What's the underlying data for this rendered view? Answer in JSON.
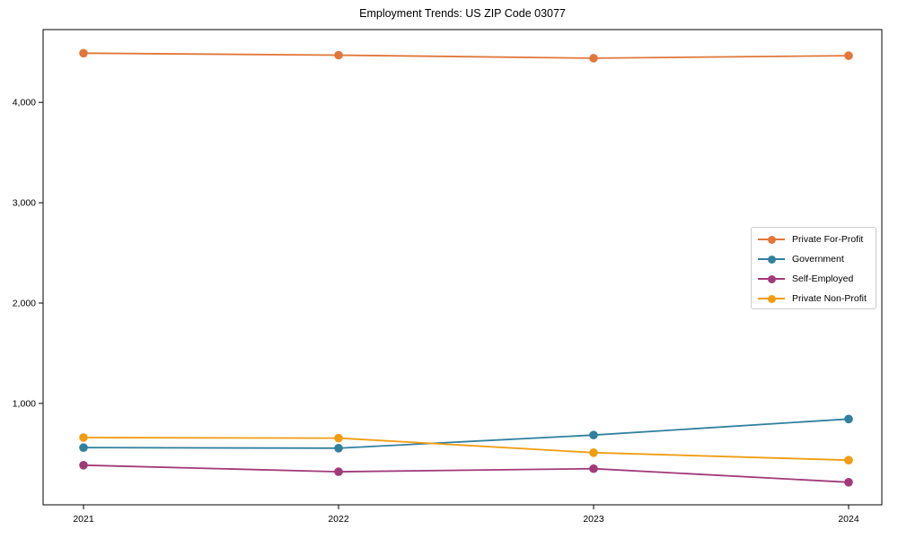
{
  "chart_data": {
    "type": "line",
    "title": "Employment Trends: US ZIP Code 03077",
    "xlabel": "",
    "ylabel": "",
    "x": [
      "2021",
      "2022",
      "2023",
      "2024"
    ],
    "series": [
      {
        "name": "Private For-Profit",
        "color": "#e1773b",
        "values": [
          4490,
          4470,
          4440,
          4465
        ]
      },
      {
        "name": "Government",
        "color": "#31809e",
        "values": [
          560,
          555,
          685,
          845
        ]
      },
      {
        "name": "Self-Employed",
        "color": "#a23a79",
        "values": [
          385,
          320,
          350,
          215
        ]
      },
      {
        "name": "Private Non-Profit",
        "color": "#f09d12",
        "values": [
          660,
          655,
          510,
          435
        ]
      }
    ],
    "yticks": [
      {
        "value": 1000,
        "label": "1,000"
      },
      {
        "value": 2000,
        "label": "2,000"
      },
      {
        "value": 3000,
        "label": "3,000"
      },
      {
        "value": 4000,
        "label": "4,000"
      }
    ],
    "ylim": [
      -10,
      4725
    ],
    "grid": false,
    "legend_position": "center-right",
    "axis_color": "#000000",
    "background_color": "#ffffff"
  }
}
